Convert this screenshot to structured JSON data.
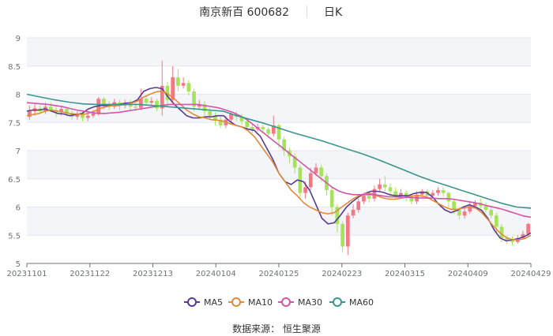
{
  "chart_data": {
    "type": "candlestick",
    "title": "南京新百 600682",
    "period": "日K",
    "x_tick_labels": [
      "20231101",
      "20231122",
      "20231213",
      "20240104",
      "20240125",
      "20240223",
      "20240315",
      "20240409",
      "20240429"
    ],
    "ylim": [
      5,
      9
    ],
    "y_ticks": [
      5,
      5.5,
      6,
      6.5,
      7,
      7.5,
      8,
      8.5,
      9
    ],
    "colors": {
      "up": "#f47884",
      "down": "#a6e35a"
    },
    "source": "数据来源：  恒生聚源",
    "legend": [
      {
        "name": "MA5",
        "color": "#5b3a8f"
      },
      {
        "name": "MA10",
        "color": "#e08a3c"
      },
      {
        "name": "MA30",
        "color": "#d355a9"
      },
      {
        "name": "MA60",
        "color": "#3a958f"
      }
    ],
    "candles": [
      [
        7.6,
        7.7,
        7.8,
        7.55
      ],
      [
        7.7,
        7.75,
        7.82,
        7.62
      ],
      [
        7.75,
        7.7,
        7.8,
        7.65
      ],
      [
        7.7,
        7.78,
        7.85,
        7.65
      ],
      [
        7.78,
        7.72,
        7.85,
        7.68
      ],
      [
        7.72,
        7.68,
        7.78,
        7.6
      ],
      [
        7.68,
        7.74,
        7.8,
        7.62
      ],
      [
        7.74,
        7.66,
        7.78,
        7.6
      ],
      [
        7.66,
        7.6,
        7.72,
        7.55
      ],
      [
        7.6,
        7.64,
        7.7,
        7.55
      ],
      [
        7.64,
        7.58,
        7.68,
        7.52
      ],
      [
        7.58,
        7.62,
        7.68,
        7.52
      ],
      [
        7.62,
        7.66,
        7.72,
        7.58
      ],
      [
        7.66,
        7.92,
        7.95,
        7.62
      ],
      [
        7.92,
        7.8,
        7.95,
        7.72
      ],
      [
        7.8,
        7.78,
        7.88,
        7.72
      ],
      [
        7.78,
        7.86,
        7.92,
        7.74
      ],
      [
        7.86,
        7.8,
        7.9,
        7.72
      ],
      [
        7.8,
        7.85,
        7.9,
        7.75
      ],
      [
        7.85,
        7.78,
        7.9,
        7.72
      ],
      [
        7.78,
        7.76,
        7.85,
        7.7
      ],
      [
        7.76,
        7.92,
        8.1,
        7.72
      ],
      [
        7.92,
        7.85,
        7.98,
        7.8
      ],
      [
        7.85,
        7.88,
        7.95,
        7.8
      ],
      [
        7.88,
        7.75,
        7.92,
        7.7
      ],
      [
        7.75,
        8.15,
        8.6,
        7.62
      ],
      [
        8.15,
        7.9,
        8.22,
        7.8
      ],
      [
        7.9,
        8.3,
        8.5,
        7.85
      ],
      [
        8.3,
        8.15,
        8.45,
        8.05
      ],
      [
        8.15,
        8.2,
        8.3,
        8.1
      ],
      [
        8.2,
        8.05,
        8.25,
        7.98
      ],
      [
        8.05,
        7.78,
        8.1,
        7.7
      ],
      [
        7.78,
        7.82,
        7.9,
        7.72
      ],
      [
        7.82,
        7.7,
        7.88,
        7.62
      ],
      [
        7.7,
        7.62,
        7.76,
        7.55
      ],
      [
        7.62,
        7.55,
        7.68,
        7.45
      ],
      [
        7.55,
        7.45,
        7.6,
        7.4
      ],
      [
        7.45,
        7.55,
        7.62,
        7.4
      ],
      [
        7.55,
        7.65,
        7.7,
        7.5
      ],
      [
        7.65,
        7.6,
        7.7,
        7.52
      ],
      [
        7.6,
        7.52,
        7.65,
        7.45
      ],
      [
        7.52,
        7.42,
        7.58,
        7.35
      ],
      [
        7.42,
        7.38,
        7.48,
        7.32
      ],
      [
        7.38,
        7.42,
        7.48,
        7.34
      ],
      [
        7.42,
        7.38,
        7.46,
        7.3
      ],
      [
        7.38,
        7.3,
        7.42,
        7.22
      ],
      [
        7.3,
        7.45,
        7.62,
        7.25
      ],
      [
        7.45,
        7.2,
        7.48,
        7.05
      ],
      [
        7.2,
        7.0,
        7.25,
        6.9
      ],
      [
        7.0,
        6.9,
        7.05,
        6.78
      ],
      [
        6.9,
        6.7,
        6.95,
        6.6
      ],
      [
        6.7,
        6.25,
        6.75,
        6.15
      ],
      [
        6.25,
        6.35,
        6.45,
        6.15
      ],
      [
        6.35,
        6.6,
        6.7,
        6.3
      ],
      [
        6.6,
        6.7,
        6.78,
        6.55
      ],
      [
        6.7,
        6.55,
        6.75,
        6.45
      ],
      [
        6.55,
        6.3,
        6.6,
        6.2
      ],
      [
        6.3,
        6.0,
        6.35,
        5.85
      ],
      [
        6.0,
        5.7,
        6.05,
        5.55
      ],
      [
        5.7,
        5.3,
        5.75,
        5.2
      ],
      [
        5.3,
        5.85,
        5.9,
        5.15
      ],
      [
        5.85,
        5.95,
        6.05,
        5.8
      ],
      [
        5.95,
        6.1,
        6.15,
        5.9
      ],
      [
        6.1,
        6.2,
        6.25,
        6.05
      ],
      [
        6.2,
        6.15,
        6.28,
        6.08
      ],
      [
        6.15,
        6.32,
        6.38,
        6.1
      ],
      [
        6.32,
        6.4,
        6.5,
        6.28
      ],
      [
        6.4,
        6.35,
        6.55,
        6.28
      ],
      [
        6.35,
        6.28,
        6.42,
        6.2
      ],
      [
        6.28,
        6.2,
        6.35,
        6.15
      ],
      [
        6.2,
        6.25,
        6.32,
        6.15
      ],
      [
        6.25,
        6.18,
        6.3,
        6.1
      ],
      [
        6.18,
        6.1,
        6.22,
        6.05
      ],
      [
        6.1,
        6.22,
        6.28,
        6.05
      ],
      [
        6.22,
        6.28,
        6.32,
        6.18
      ],
      [
        6.28,
        6.2,
        6.32,
        6.15
      ],
      [
        6.2,
        6.25,
        6.3,
        6.15
      ],
      [
        6.25,
        6.3,
        6.35,
        6.2
      ],
      [
        6.3,
        6.25,
        6.35,
        6.18
      ],
      [
        6.25,
        6.1,
        6.28,
        6.0
      ],
      [
        6.1,
        5.95,
        6.15,
        5.88
      ],
      [
        5.95,
        5.85,
        6.0,
        5.78
      ],
      [
        5.85,
        5.92,
        6.0,
        5.8
      ],
      [
        5.92,
        6.02,
        6.08,
        5.88
      ],
      [
        6.02,
        6.08,
        6.12,
        5.98
      ],
      [
        6.08,
        6.02,
        6.15,
        5.96
      ],
      [
        6.02,
        5.95,
        6.08,
        5.9
      ],
      [
        5.95,
        5.85,
        6.0,
        5.8
      ],
      [
        5.85,
        5.65,
        5.9,
        5.55
      ],
      [
        5.65,
        5.45,
        5.7,
        5.38
      ],
      [
        5.45,
        5.42,
        5.5,
        5.35
      ],
      [
        5.42,
        5.38,
        5.48,
        5.32
      ],
      [
        5.38,
        5.45,
        5.5,
        5.35
      ],
      [
        5.45,
        5.52,
        5.58,
        5.42
      ],
      [
        5.52,
        5.7,
        5.72,
        5.48
      ]
    ],
    "ma5": [
      7.7,
      7.72,
      7.72,
      7.74,
      7.7,
      7.66,
      7.65,
      7.62,
      7.64,
      7.66,
      7.74,
      7.78,
      7.8,
      7.8,
      7.82,
      7.82,
      7.84,
      7.85,
      7.9,
      8.05,
      8.1,
      8.12,
      8.1,
      7.95,
      7.82,
      7.72,
      7.62,
      7.58,
      7.58,
      7.6,
      7.6,
      7.62,
      7.62,
      7.52,
      7.45,
      7.42,
      7.38,
      7.36,
      7.25,
      7.05,
      6.85,
      6.6,
      6.45,
      6.4,
      6.48,
      6.45,
      6.3,
      6.05,
      5.8,
      5.7,
      5.72,
      5.85,
      6.0,
      6.1,
      6.18,
      6.24,
      6.28,
      6.28,
      6.26,
      6.22,
      6.2,
      6.2,
      6.2,
      6.24,
      6.26,
      6.26,
      6.18,
      6.05,
      5.95,
      5.9,
      5.94,
      6.0,
      6.04,
      6.0,
      5.94,
      5.8,
      5.6,
      5.45,
      5.4,
      5.42,
      5.44,
      5.48,
      5.54
    ],
    "ma10": [
      7.62,
      7.64,
      7.66,
      7.7,
      7.72,
      7.7,
      7.68,
      7.66,
      7.65,
      7.64,
      7.66,
      7.7,
      7.75,
      7.78,
      7.8,
      7.8,
      7.82,
      7.84,
      7.88,
      7.95,
      8.0,
      8.04,
      8.06,
      8.0,
      7.92,
      7.82,
      7.72,
      7.65,
      7.6,
      7.58,
      7.55,
      7.54,
      7.52,
      7.48,
      7.45,
      7.42,
      7.35,
      7.25,
      7.1,
      6.95,
      6.8,
      6.6,
      6.45,
      6.3,
      6.2,
      6.08,
      6.0,
      5.95,
      5.9,
      5.88,
      5.9,
      5.98,
      6.06,
      6.14,
      6.2,
      6.24,
      6.24,
      6.2,
      6.16,
      6.14,
      6.14,
      6.16,
      6.18,
      6.2,
      6.2,
      6.18,
      6.12,
      6.06,
      6.0,
      5.96,
      5.96,
      5.98,
      6.0,
      5.98,
      5.9,
      5.78,
      5.65,
      5.54,
      5.46,
      5.42,
      5.42,
      5.44,
      5.5
    ],
    "ma30": [
      7.85,
      7.84,
      7.83,
      7.82,
      7.8,
      7.78,
      7.75,
      7.72,
      7.7,
      7.68,
      7.66,
      7.66,
      7.67,
      7.68,
      7.7,
      7.72,
      7.74,
      7.76,
      7.78,
      7.8,
      7.82,
      7.82,
      7.82,
      7.82,
      7.82,
      7.8,
      7.78,
      7.76,
      7.72,
      7.68,
      7.62,
      7.55,
      7.45,
      7.35,
      7.25,
      7.15,
      7.05,
      6.95,
      6.85,
      6.75,
      6.65,
      6.55,
      6.45,
      6.35,
      6.28,
      6.24,
      6.22,
      6.22,
      6.22,
      6.22,
      6.2,
      6.18,
      6.18,
      6.17,
      6.17,
      6.16,
      6.16,
      6.16,
      6.15,
      6.15,
      6.14,
      6.12,
      6.1,
      6.08,
      6.05,
      6.02,
      5.99,
      5.96,
      5.92,
      5.88,
      5.84,
      5.82
    ],
    "ma60": [
      8.0,
      7.95,
      7.9,
      7.86,
      7.83,
      7.82,
      7.82,
      7.82,
      7.82,
      7.8,
      7.78,
      7.76,
      7.74,
      7.72,
      7.7,
      7.62,
      7.55,
      7.48,
      7.4,
      7.32,
      7.25,
      7.18,
      7.1,
      7.02,
      6.94,
      6.85,
      6.75,
      6.65,
      6.55,
      6.46,
      6.38,
      6.3,
      6.22,
      6.14,
      6.06,
      6.0,
      5.98
    ]
  }
}
